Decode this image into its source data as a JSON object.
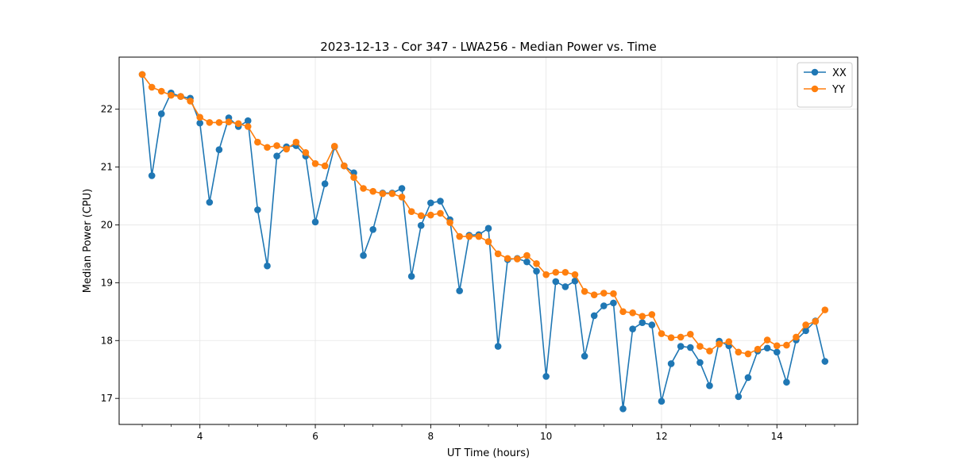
{
  "chart_data": {
    "type": "line",
    "title": "2023-12-13 - Cor 347 - LWA256 - Median Power vs. Time",
    "xlabel": "UT Time (hours)",
    "ylabel": "Median Power (CPU)",
    "xlim": [
      2.6,
      15.4
    ],
    "ylim": [
      16.55,
      22.9
    ],
    "xticks": [
      4,
      6,
      8,
      10,
      12,
      14
    ],
    "xtick_labels": [
      "4",
      "6",
      "8",
      "10",
      "12",
      "14"
    ],
    "yticks": [
      17,
      18,
      19,
      20,
      21,
      22
    ],
    "ytick_labels": [
      "17",
      "18",
      "19",
      "20",
      "21",
      "22"
    ],
    "grid": true,
    "legend_position": "top-right",
    "x": [
      3.0,
      3.167,
      3.333,
      3.5,
      3.667,
      3.833,
      4.0,
      4.167,
      4.333,
      4.5,
      4.667,
      4.833,
      5.0,
      5.167,
      5.333,
      5.5,
      5.667,
      5.833,
      6.0,
      6.167,
      6.333,
      6.5,
      6.667,
      6.833,
      7.0,
      7.167,
      7.333,
      7.5,
      7.667,
      7.833,
      8.0,
      8.167,
      8.333,
      8.5,
      8.667,
      8.833,
      9.0,
      9.167,
      9.333,
      9.5,
      9.667,
      9.833,
      10.0,
      10.167,
      10.333,
      10.5,
      10.667,
      10.833,
      11.0,
      11.167,
      11.333,
      11.5,
      11.667,
      11.833,
      12.0,
      12.167,
      12.333,
      12.5,
      12.667,
      12.833,
      13.0,
      13.167,
      13.333,
      13.5,
      13.667,
      13.833,
      14.0,
      14.167,
      14.333,
      14.5,
      14.667,
      14.833
    ],
    "series": [
      {
        "name": "XX",
        "color": "#1f77b4",
        "values": [
          22.6,
          20.85,
          21.92,
          22.28,
          22.22,
          22.19,
          21.76,
          20.39,
          21.3,
          21.85,
          21.7,
          21.8,
          20.26,
          19.29,
          21.19,
          21.35,
          21.37,
          21.19,
          20.05,
          20.71,
          21.35,
          21.02,
          20.9,
          19.47,
          19.92,
          20.55,
          20.55,
          20.63,
          19.11,
          19.99,
          20.38,
          20.41,
          20.09,
          18.86,
          19.82,
          19.83,
          19.94,
          17.9,
          19.4,
          19.42,
          19.36,
          19.2,
          17.38,
          19.02,
          18.93,
          19.03,
          17.73,
          18.43,
          18.6,
          18.65,
          16.82,
          18.2,
          18.31,
          18.27,
          16.95,
          17.6,
          17.9,
          17.88,
          17.62,
          17.22,
          17.99,
          17.91,
          17.03,
          17.36,
          17.82,
          17.87,
          17.8,
          17.28,
          18.01,
          18.17,
          18.34,
          17.64
        ]
      },
      {
        "name": "YY",
        "color": "#ff7f0e",
        "values": [
          22.6,
          22.38,
          22.31,
          22.24,
          22.22,
          22.14,
          21.86,
          21.77,
          21.77,
          21.78,
          21.75,
          21.7,
          21.43,
          21.34,
          21.37,
          21.31,
          21.43,
          21.25,
          21.06,
          21.02,
          21.36,
          21.02,
          20.82,
          20.63,
          20.58,
          20.54,
          20.54,
          20.48,
          20.23,
          20.16,
          20.17,
          20.2,
          20.04,
          19.8,
          19.8,
          19.8,
          19.71,
          19.5,
          19.42,
          19.41,
          19.47,
          19.33,
          19.14,
          19.18,
          19.18,
          19.14,
          18.85,
          18.79,
          18.82,
          18.81,
          18.5,
          18.48,
          18.42,
          18.45,
          18.12,
          18.05,
          18.06,
          18.11,
          17.9,
          17.82,
          17.94,
          17.98,
          17.8,
          17.77,
          17.85,
          18.01,
          17.91,
          17.92,
          18.06,
          18.27,
          18.33,
          18.53
        ]
      }
    ]
  }
}
